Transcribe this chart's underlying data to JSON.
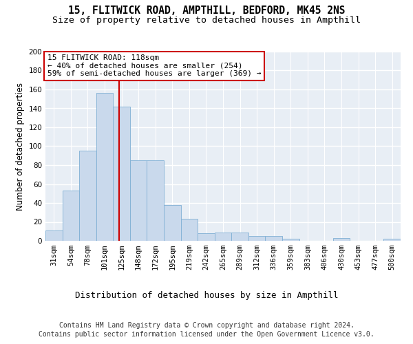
{
  "title_line1": "15, FLITWICK ROAD, AMPTHILL, BEDFORD, MK45 2NS",
  "title_line2": "Size of property relative to detached houses in Ampthill",
  "xlabel": "Distribution of detached houses by size in Ampthill",
  "ylabel": "Number of detached properties",
  "bar_color": "#c9d9ec",
  "bar_edge_color": "#7fafd4",
  "background_color": "#e8eef5",
  "grid_color": "#ffffff",
  "categories": [
    "31sqm",
    "54sqm",
    "78sqm",
    "101sqm",
    "125sqm",
    "148sqm",
    "172sqm",
    "195sqm",
    "219sqm",
    "242sqm",
    "265sqm",
    "289sqm",
    "312sqm",
    "336sqm",
    "359sqm",
    "383sqm",
    "406sqm",
    "430sqm",
    "453sqm",
    "477sqm",
    "500sqm"
  ],
  "values": [
    11,
    53,
    95,
    156,
    142,
    85,
    85,
    38,
    23,
    8,
    9,
    9,
    5,
    5,
    2,
    0,
    0,
    3,
    0,
    0,
    2
  ],
  "ylim": [
    0,
    200
  ],
  "yticks": [
    0,
    20,
    40,
    60,
    80,
    100,
    120,
    140,
    160,
    180,
    200
  ],
  "property_line_x": 3.87,
  "property_line_label": "15 FLITWICK ROAD: 118sqm",
  "annotation_line1": "← 40% of detached houses are smaller (254)",
  "annotation_line2": "59% of semi-detached houses are larger (369) →",
  "annotation_box_color": "#ffffff",
  "annotation_box_edge": "#cc0000",
  "footer_line1": "Contains HM Land Registry data © Crown copyright and database right 2024.",
  "footer_line2": "Contains public sector information licensed under the Open Government Licence v3.0.",
  "title_fontsize": 10.5,
  "subtitle_fontsize": 9.5,
  "axis_label_fontsize": 8.5,
  "tick_fontsize": 7.5,
  "annotation_fontsize": 8,
  "footer_fontsize": 7
}
